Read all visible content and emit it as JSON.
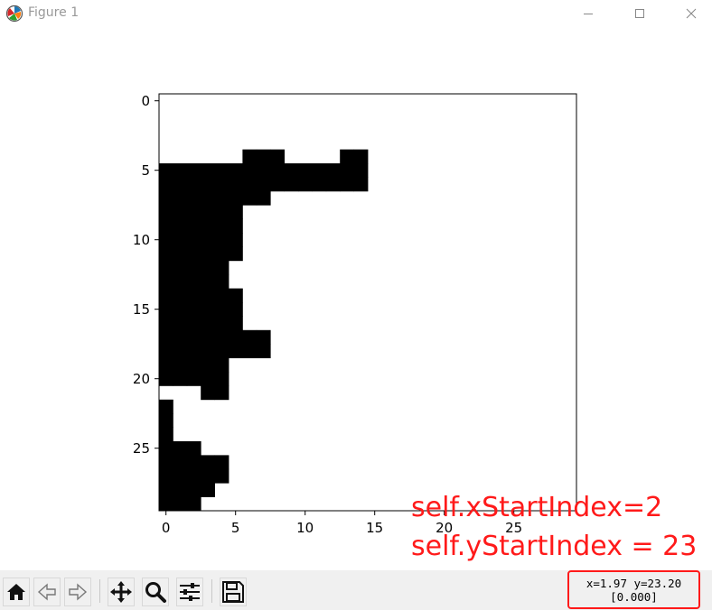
{
  "window": {
    "title": "Figure 1",
    "icons": {
      "app": "matplotlib-logo-icon",
      "minimize": "minimize-icon",
      "maximize": "maximize-icon",
      "close": "close-icon"
    }
  },
  "chart_data": {
    "type": "heatmap",
    "colormap": "gray_r",
    "xlim": [
      -0.5,
      29.5
    ],
    "ylim": [
      29.5,
      -0.5
    ],
    "x_ticks": [
      0,
      5,
      10,
      15,
      20,
      25
    ],
    "y_ticks": [
      0,
      5,
      10,
      15,
      20,
      25
    ],
    "x_tick_labels": [
      "0",
      "5",
      "10",
      "15",
      "20",
      "25"
    ],
    "y_tick_labels": [
      "0",
      "5",
      "10",
      "15",
      "20",
      "25"
    ],
    "grid": false,
    "rows": [
      "000000000000000000000000000000",
      "000000000000000000000000000000",
      "000000000000000000000000000000",
      "000000000000000000000000000000",
      "000000111000011000000000000000",
      "111111111111111000000000000000",
      "111111111111111000000000000000",
      "111111110000000000000000000000",
      "111111000000000000000000000000",
      "111111000000000000000000000000",
      "111111000000000000000000000000",
      "111111000000000000000000000000",
      "111110000000000000000000000000",
      "111110000000000000000000000000",
      "111111000000000000000000000000",
      "111111000000000000000000000000",
      "111111000000000000000000000000",
      "111111110000000000000000000000",
      "111111110000000000000000000000",
      "111110000000000000000000000000",
      "111110000000000000000000000000",
      "000110000000000000000000000000",
      "100000000000000000000000000000",
      "100000000000000000000000000000",
      "100000000000000000000000000000",
      "111000000000000000000000000000",
      "111110000000000000000000000000",
      "111110000000000000000000000000",
      "111100000000000000000000000000",
      "111000000000000000000000000000"
    ]
  },
  "annotations": {
    "x_start": "self.xStartIndex=2",
    "y_start": "self.yStartIndex = 23"
  },
  "toolbar": {
    "buttons": [
      {
        "name": "home-button",
        "icon": "home-icon"
      },
      {
        "name": "back-button",
        "icon": "back-arrow-icon"
      },
      {
        "name": "forward-button",
        "icon": "forward-arrow-icon"
      },
      {
        "name": "pan-button",
        "icon": "move-arrows-icon"
      },
      {
        "name": "zoom-button",
        "icon": "magnifier-icon"
      },
      {
        "name": "configure-subplots-button",
        "icon": "sliders-icon"
      },
      {
        "name": "save-button",
        "icon": "floppy-disk-icon"
      }
    ],
    "coords_line1": "x=1.97 y=23.20",
    "coords_line2": "[0.000]"
  },
  "colors": {
    "highlight": "#ff1a1a",
    "cell_on": "#000000",
    "cell_off": "#ffffff"
  }
}
